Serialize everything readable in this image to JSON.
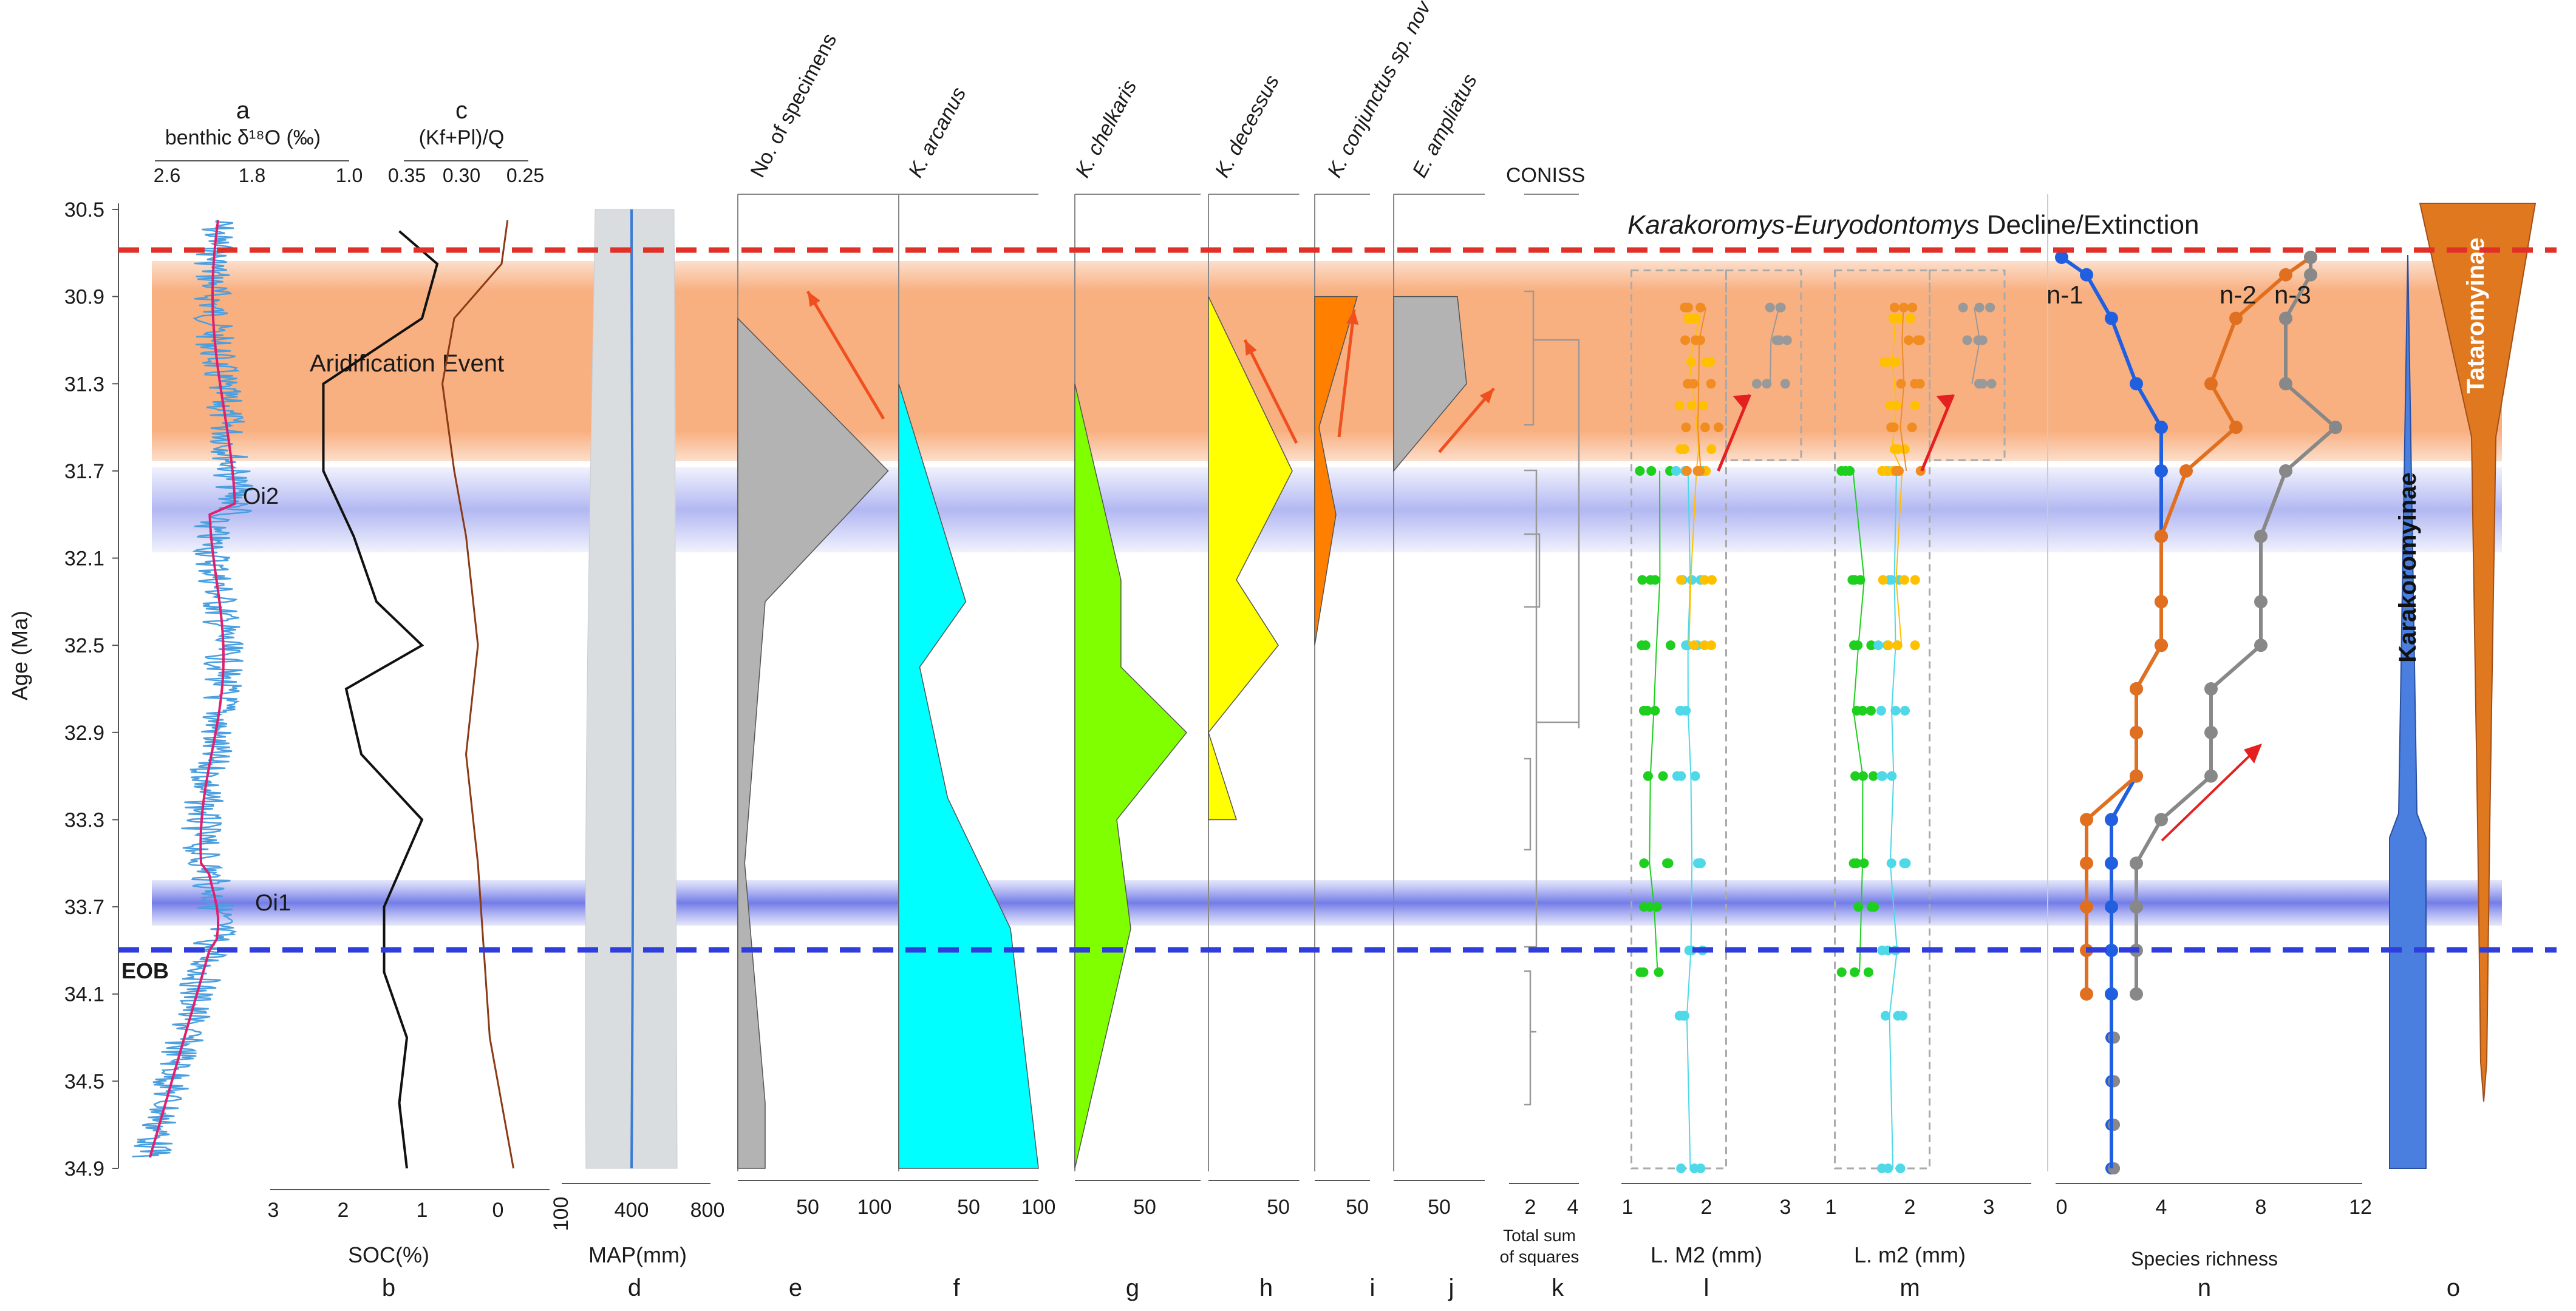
{
  "figure": {
    "age_axis": {
      "label": "Age (Ma)",
      "min": 30.5,
      "max": 34.9,
      "ticks": [
        30.5,
        30.9,
        31.3,
        31.7,
        32.1,
        32.5,
        32.9,
        33.3,
        33.7,
        34.1,
        34.5,
        34.9
      ]
    },
    "bands": [
      {
        "label": "Aridification Event",
        "from": 30.83,
        "to": 31.65,
        "color": "#f7a26b"
      },
      {
        "label": "Oi2",
        "from": 31.73,
        "to": 32.08,
        "color": "#9fa6ef"
      },
      {
        "label": "Oi1",
        "from": 33.62,
        "to": 33.8,
        "color": "#7d86ea"
      }
    ],
    "lines": [
      {
        "label": "Karakoromys-Euryodontomys Decline/Extinction",
        "age": 30.72,
        "color": "#e03028"
      },
      {
        "label": "EOB",
        "age": 33.9,
        "color": "#2e3ddc"
      }
    ],
    "extinction_label": {
      "prefix": "Karakoromys-",
      "genus2": "Euryodontomys",
      "suffix": " Decline/Extinction"
    }
  },
  "panels": {
    "a": {
      "letter": "a",
      "title": "benthic δ¹⁸O (‰)",
      "ticks": [
        "2.6",
        "1.8",
        "1.0"
      ],
      "color": "#4a9fe0",
      "trend_color": "#e0206e"
    },
    "b": {
      "letter": "b",
      "title": "SOC(%)",
      "ticks": [
        "3",
        "2",
        "1",
        "0"
      ],
      "color": "#111111"
    },
    "c": {
      "letter": "c",
      "title": "(Kf+Pl)/Q",
      "ticks": [
        "0.35",
        "0.30",
        "0.25"
      ],
      "color": "#8a3a14"
    },
    "d": {
      "letter": "d",
      "title": "MAP(mm)",
      "ticks": [
        "100",
        "400",
        "800"
      ],
      "color": "#3a7bd5"
    },
    "e": {
      "letter": "e",
      "title": "No. of specimens",
      "ticks": [
        "50",
        "100"
      ],
      "color": "#b3b3b3"
    },
    "f": {
      "letter": "f",
      "title": "K. arcanus",
      "ticks": [
        "50",
        "100"
      ],
      "color": "#00ffff"
    },
    "g": {
      "letter": "g",
      "title": "K. chelkaris",
      "ticks": [
        "50"
      ],
      "color": "#80ff00"
    },
    "h": {
      "letter": "h",
      "title": "K. decessus",
      "ticks": [
        "50"
      ],
      "color": "#ffff00"
    },
    "i": {
      "letter": "i",
      "title": "K. conjunctus sp. nov",
      "ticks": [
        "50"
      ],
      "color": "#ff7f00"
    },
    "j": {
      "letter": "j",
      "title": "E. ampliatus",
      "ticks": [
        "50"
      ],
      "color": "#b3b3b3"
    },
    "k": {
      "letter": "k",
      "title": "CONISS",
      "ticks": [
        "2",
        "4"
      ],
      "xlabel": "Total sum of squares",
      "xlabel_1": "Total sum",
      "xlabel_2": "of squares"
    },
    "l": {
      "letter": "l",
      "title": "L. M2 (mm)",
      "ticks": [
        "1",
        "2",
        "3"
      ]
    },
    "m": {
      "letter": "m",
      "title": "L. m2 (mm)",
      "ticks": [
        "1",
        "2",
        "3"
      ]
    },
    "n": {
      "letter": "n",
      "title": "Species richness",
      "ticks": [
        "0",
        "4",
        "8",
        "12"
      ],
      "series_labels": [
        "n-1",
        "n-2",
        "n-3"
      ]
    },
    "o": {
      "letter": "o",
      "taxa": [
        "Karakoromyinae",
        "Tataromyinae"
      ],
      "colors": [
        "#4a7fe0",
        "#e07820"
      ]
    }
  },
  "chart_data": {
    "type": "area",
    "ylabel": "Age (Ma)",
    "ylim": [
      30.5,
      34.9
    ],
    "specimens": {
      "ages": [
        31.0,
        31.7,
        32.3,
        33.5,
        34.6,
        34.9
      ],
      "values": [
        0,
        110,
        20,
        5,
        20,
        20
      ]
    },
    "k_arcanus": {
      "ages": [
        31.3,
        32.3,
        32.6,
        33.2,
        33.8,
        34.9
      ],
      "values": [
        0,
        48,
        15,
        35,
        80,
        100
      ]
    },
    "k_chelkaris": {
      "ages": [
        31.3,
        32.2,
        32.6,
        32.9,
        33.3,
        33.8,
        34.9
      ],
      "values": [
        0,
        33,
        33,
        80,
        30,
        40,
        0
      ]
    },
    "k_decessus": {
      "ages": [
        30.9,
        31.7,
        32.2,
        32.5,
        32.9,
        33.3
      ],
      "values": [
        0,
        60,
        20,
        50,
        0,
        20
      ]
    },
    "k_conjunctus": {
      "ages": [
        30.9,
        31.5,
        31.9,
        32.5
      ],
      "values": [
        50,
        5,
        25,
        0
      ],
      "max_value": 50
    },
    "e_ampliatus": {
      "ages": [
        30.9,
        31.3,
        31.7
      ],
      "values": [
        70,
        80,
        0
      ]
    },
    "soc_percent": {
      "ages": [
        30.6,
        30.75,
        31.0,
        31.3,
        31.7,
        32.0,
        32.3,
        32.5,
        32.7,
        33.0,
        33.3,
        33.7,
        34.0,
        34.3,
        34.6,
        34.9
      ],
      "values": [
        1.3,
        0.8,
        1.0,
        2.3,
        2.3,
        1.9,
        1.6,
        1.0,
        2.0,
        1.8,
        1.0,
        1.5,
        1.5,
        1.2,
        1.3,
        1.2
      ]
    },
    "kf_pl_q": {
      "ages": [
        30.55,
        30.75,
        31.0,
        31.3,
        31.7,
        32.0,
        32.5,
        33.0,
        33.5,
        33.9,
        34.3,
        34.6,
        34.9
      ],
      "values": [
        0.265,
        0.27,
        0.31,
        0.32,
        0.31,
        0.3,
        0.29,
        0.3,
        0.29,
        0.285,
        0.28,
        0.27,
        0.26
      ]
    },
    "species_richness": {
      "ages": [
        30.72,
        30.8,
        31.0,
        31.3,
        31.5,
        31.7,
        32.0,
        32.3,
        32.5,
        32.7,
        32.9,
        33.1,
        33.3,
        33.5,
        33.7,
        33.9,
        34.1
      ],
      "series": [
        {
          "name": "n-1",
          "values": [
            0,
            1,
            2,
            3,
            4,
            4,
            4,
            4,
            4,
            3,
            3,
            3,
            2,
            2,
            2,
            2,
            2
          ]
        },
        {
          "name": "n-2",
          "values": [
            10,
            9,
            7,
            6,
            7,
            5,
            4,
            4,
            4,
            3,
            3,
            3,
            1,
            1,
            1,
            1,
            1
          ]
        },
        {
          "name": "n-3",
          "values": [
            10,
            10,
            9,
            9,
            11,
            9,
            8,
            8,
            8,
            6,
            6,
            6,
            4,
            3,
            3,
            3,
            3
          ]
        }
      ]
    }
  }
}
